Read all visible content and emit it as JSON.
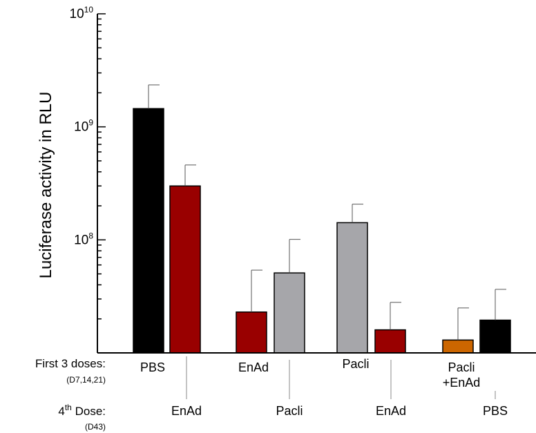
{
  "chart_data": {
    "type": "bar",
    "ylabel": "Luciferase  activity  in RLU",
    "yscale": "log",
    "ylim": [
      10000000,
      10000000000
    ],
    "yticks": [
      {
        "base": "10",
        "exp": "10",
        "value": 10000000000
      },
      {
        "base": "10",
        "exp": "9",
        "value": 1000000000
      },
      {
        "base": "10",
        "exp": "8",
        "value": 100000000
      }
    ],
    "row_labels": {
      "first": {
        "label": "First 3 doses:",
        "sub": "(D7,14,21)"
      },
      "fourth": {
        "label_main": "4",
        "label_sup": "th",
        "label_rest": " Dose:",
        "sub": "(D43)"
      }
    },
    "groups": [
      {
        "first": [
          "PBS"
        ],
        "fourth": "EnAd"
      },
      {
        "first": [
          "EnAd"
        ],
        "fourth": "Pacli"
      },
      {
        "first": [
          "Pacli"
        ],
        "fourth": "EnAd"
      },
      {
        "first": [
          "Pacli",
          "+EnAd"
        ],
        "fourth": "PBS"
      }
    ],
    "bars": [
      {
        "group": 0,
        "value": 1450000000,
        "error_upper": 2350000000,
        "color": "#000000"
      },
      {
        "group": 0,
        "value": 300000000,
        "error_upper": 460000000,
        "color": "#990000"
      },
      {
        "group": 1,
        "value": 23000000,
        "error_upper": 54000000,
        "color": "#990000"
      },
      {
        "group": 1,
        "value": 51000000,
        "error_upper": 101000000,
        "color": "#a6a6aa"
      },
      {
        "group": 2,
        "value": 142000000,
        "error_upper": 207000000,
        "color": "#a6a6aa"
      },
      {
        "group": 2,
        "value": 16000000,
        "error_upper": 28000000,
        "color": "#990000"
      },
      {
        "group": 3,
        "value": 13000000,
        "error_upper": 25000000,
        "color": "#cc6600"
      },
      {
        "group": 3,
        "value": 19500000,
        "error_upper": 36500000,
        "color": "#000000"
      }
    ],
    "grid": false,
    "legend": "none"
  }
}
